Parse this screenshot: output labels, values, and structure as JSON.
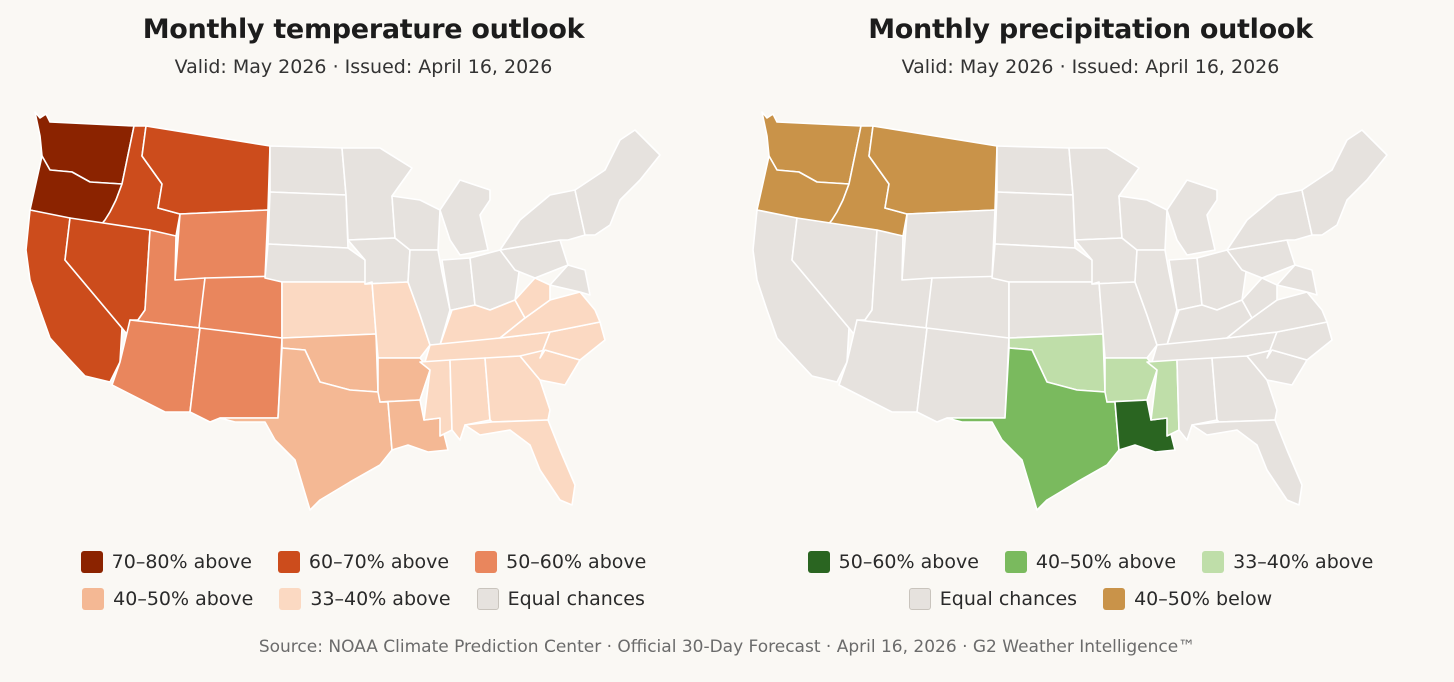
{
  "colors": {
    "t70_80": "#8b2300",
    "t60_70": "#cc4c1c",
    "t50_60": "#e9865d",
    "t40_50": "#f4b894",
    "t33_40": "#fbd9c2",
    "equal": "#e6e2de",
    "p50_60_above": "#2a6521",
    "p40_50_above": "#7aba5e",
    "p33_40_above": "#bfdea9",
    "p40_50_below": "#c99349"
  },
  "temperature": {
    "title": "Monthly temperature outlook",
    "subtitle": "Valid: May 2026 · Issued: April 16, 2026",
    "legend_row1": [
      "70–80% above",
      "60–70% above",
      "50–60% above"
    ],
    "legend_row2": [
      "40–50% above",
      "33–40% above",
      "Equal chances"
    ]
  },
  "precipitation": {
    "title": "Monthly precipitation outlook",
    "subtitle": "Valid: May 2026 · Issued: April 16, 2026",
    "legend_row1": [
      "50–60% above",
      "40–50% above",
      "33–40% above"
    ],
    "legend_row2": [
      "Equal chances",
      "40–50% below"
    ]
  },
  "source": "Source: NOAA Climate Prediction Center · Official 30-Day Forecast · April 16, 2026 · G2 Weather Intelligence™",
  "states": {
    "WA": {
      "temp": "t70_80",
      "precip": "p40_50_below"
    },
    "OR": {
      "temp": "t70_80",
      "precip": "p40_50_below"
    },
    "ID": {
      "temp": "t60_70",
      "precip": "p40_50_below"
    },
    "MT": {
      "temp": "t60_70",
      "precip": "p40_50_below"
    },
    "CA": {
      "temp": "t60_70",
      "precip": "equal"
    },
    "NV": {
      "temp": "t60_70",
      "precip": "equal"
    },
    "WY": {
      "temp": "t50_60",
      "precip": "equal"
    },
    "UT": {
      "temp": "t50_60",
      "precip": "equal"
    },
    "CO": {
      "temp": "t50_60",
      "precip": "equal"
    },
    "AZ": {
      "temp": "t50_60",
      "precip": "equal"
    },
    "NM": {
      "temp": "t50_60",
      "precip": "equal"
    },
    "TX": {
      "temp": "t40_50",
      "precip": "p40_50_above"
    },
    "OK": {
      "temp": "t40_50",
      "precip": "p33_40_above"
    },
    "AR": {
      "temp": "t40_50",
      "precip": "p33_40_above"
    },
    "LA": {
      "temp": "t40_50",
      "precip": "p50_60_above"
    },
    "MS": {
      "temp": "t33_40",
      "precip": "p33_40_above"
    },
    "KS": {
      "temp": "t33_40",
      "precip": "equal"
    },
    "MO": {
      "temp": "t33_40",
      "precip": "equal"
    },
    "KY": {
      "temp": "t33_40",
      "precip": "equal"
    },
    "TN": {
      "temp": "t33_40",
      "precip": "equal"
    },
    "AL": {
      "temp": "t33_40",
      "precip": "equal"
    },
    "GA": {
      "temp": "t33_40",
      "precip": "equal"
    },
    "FL": {
      "temp": "t33_40",
      "precip": "equal"
    },
    "SC": {
      "temp": "t33_40",
      "precip": "equal"
    },
    "NC": {
      "temp": "t33_40",
      "precip": "equal"
    },
    "VA": {
      "temp": "t33_40",
      "precip": "equal"
    },
    "WV": {
      "temp": "t33_40",
      "precip": "equal"
    },
    "ND": {
      "temp": "equal",
      "precip": "equal"
    },
    "SD": {
      "temp": "equal",
      "precip": "equal"
    },
    "NE": {
      "temp": "equal",
      "precip": "equal"
    },
    "MN": {
      "temp": "equal",
      "precip": "equal"
    },
    "IA": {
      "temp": "equal",
      "precip": "equal"
    },
    "WI": {
      "temp": "equal",
      "precip": "equal"
    },
    "IL": {
      "temp": "equal",
      "precip": "equal"
    },
    "MI": {
      "temp": "equal",
      "precip": "equal"
    },
    "IN": {
      "temp": "equal",
      "precip": "equal"
    },
    "OH": {
      "temp": "equal",
      "precip": "equal"
    },
    "PA": {
      "temp": "equal",
      "precip": "equal"
    },
    "NY": {
      "temp": "equal",
      "precip": "equal"
    },
    "NE_STATES": {
      "temp": "equal",
      "precip": "equal"
    },
    "MIDATL": {
      "temp": "equal",
      "precip": "equal"
    }
  }
}
